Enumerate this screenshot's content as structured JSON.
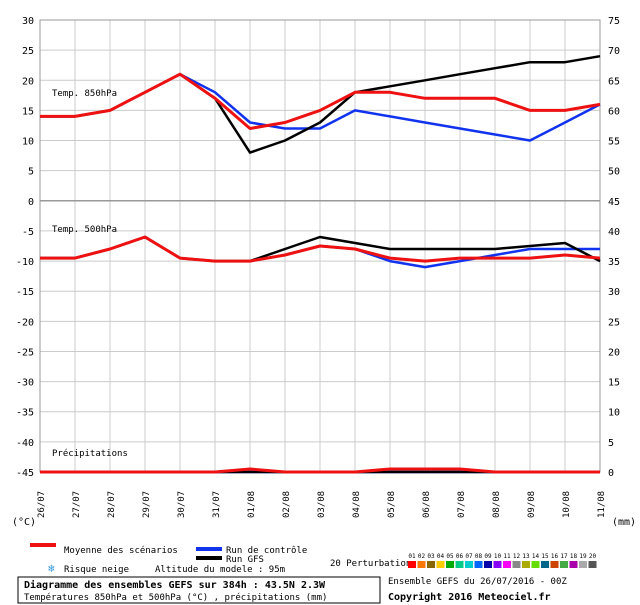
{
  "chart_data": {
    "type": "line",
    "dates": [
      "26/07",
      "27/07",
      "28/07",
      "29/07",
      "30/07",
      "31/07",
      "01/08",
      "02/08",
      "03/08",
      "04/08",
      "05/08",
      "06/08",
      "07/08",
      "08/08",
      "09/08",
      "10/08",
      "11/08"
    ],
    "x_unit_left": "(°C)",
    "x_unit_right": "(mm)",
    "y_left_ticks": [
      30,
      25,
      20,
      15,
      10,
      5,
      0,
      -5,
      -10,
      -15,
      -20,
      -25,
      -30,
      -35,
      -40,
      -45
    ],
    "y_right_ticks": [
      75,
      70,
      65,
      60,
      55,
      50,
      45,
      40,
      35,
      30,
      25,
      20,
      15,
      10,
      5,
      0
    ],
    "panels": [
      {
        "label": "Temp. 850hPa",
        "axis": "left",
        "mean": [
          14,
          14,
          15,
          18,
          21,
          17,
          12,
          13,
          15,
          18,
          18,
          17,
          17,
          17,
          15,
          15,
          16
        ],
        "control": [
          14,
          14,
          15,
          18,
          21,
          18,
          13,
          12,
          12,
          15,
          14,
          13,
          12,
          11,
          10,
          13,
          16
        ],
        "gfs": [
          14,
          14,
          15,
          18,
          21,
          17,
          8,
          10,
          13,
          18,
          19,
          20,
          21,
          22,
          23,
          23,
          24
        ]
      },
      {
        "label": "Temp. 500hPa",
        "axis": "left",
        "mean": [
          -9.5,
          -9.5,
          -8,
          -6,
          -9.5,
          -10,
          -10,
          -9,
          -7.5,
          -8,
          -9.5,
          -10,
          -9.5,
          -9.5,
          -9.5,
          -9,
          -9.5
        ],
        "control": [
          -9.5,
          -9.5,
          -8,
          -6,
          -9.5,
          -10,
          -10,
          -9,
          -7.5,
          -8,
          -10,
          -11,
          -10,
          -9,
          -8,
          -8,
          -8
        ],
        "gfs": [
          -9.5,
          -9.5,
          -8,
          -6,
          -9.5,
          -10,
          -10,
          -8,
          -6,
          -7,
          -8,
          -8,
          -8,
          -8,
          -7.5,
          -7,
          -10
        ]
      },
      {
        "label": "Précipitations",
        "axis": "right",
        "mean": [
          0,
          0,
          0,
          0,
          0,
          0,
          0.5,
          0,
          0,
          0,
          0.5,
          0.5,
          0.5,
          0,
          0,
          0,
          0
        ],
        "control": [
          0,
          0,
          0,
          0,
          0,
          0,
          0,
          0,
          0,
          0,
          0,
          0,
          0,
          0,
          0,
          0,
          0
        ],
        "gfs": [
          0,
          0,
          0,
          0,
          0,
          0,
          0,
          0,
          0,
          0,
          0,
          0,
          0,
          0,
          0,
          0,
          0
        ]
      }
    ],
    "legend": {
      "mean": "Moyenne des scénarios",
      "control": "Run de contrôle",
      "gfs": "Run GFS",
      "perturbations": "20 Perturbations",
      "perturbation_ids": [
        "01",
        "02",
        "03",
        "04",
        "05",
        "06",
        "07",
        "08",
        "09",
        "10",
        "11",
        "12",
        "13",
        "14",
        "15",
        "16",
        "17",
        "18",
        "19",
        "20"
      ],
      "snow_risk": "Risque neige",
      "model_altitude": "Altitude du modele : 95m"
    },
    "title": "Diagramme des ensembles GEFS sur 384h : 43.5N 2.3W",
    "subtitle": "Températures 850hPa et 500hPa (°C) , précipitations (mm)",
    "run_info": "Ensemble GEFS du 26/07/2016 - 00Z",
    "copyright": "Copyright 2016 Meteociel.fr"
  },
  "colors": {
    "mean": "#ee1111",
    "control": "#1133ee",
    "gfs": "#000000",
    "grid": "#cccccc",
    "axis": "#999999",
    "perturbations": [
      "#ff0000",
      "#ff7700",
      "#886600",
      "#ffcc00",
      "#00aa00",
      "#00cc88",
      "#00cccc",
      "#0066ff",
      "#0000aa",
      "#8800ff",
      "#ff00ff",
      "#888888",
      "#aaaa00",
      "#66dd00",
      "#006688",
      "#cc4400",
      "#44aa44",
      "#aa00aa",
      "#aaaaaa",
      "#555555"
    ]
  }
}
